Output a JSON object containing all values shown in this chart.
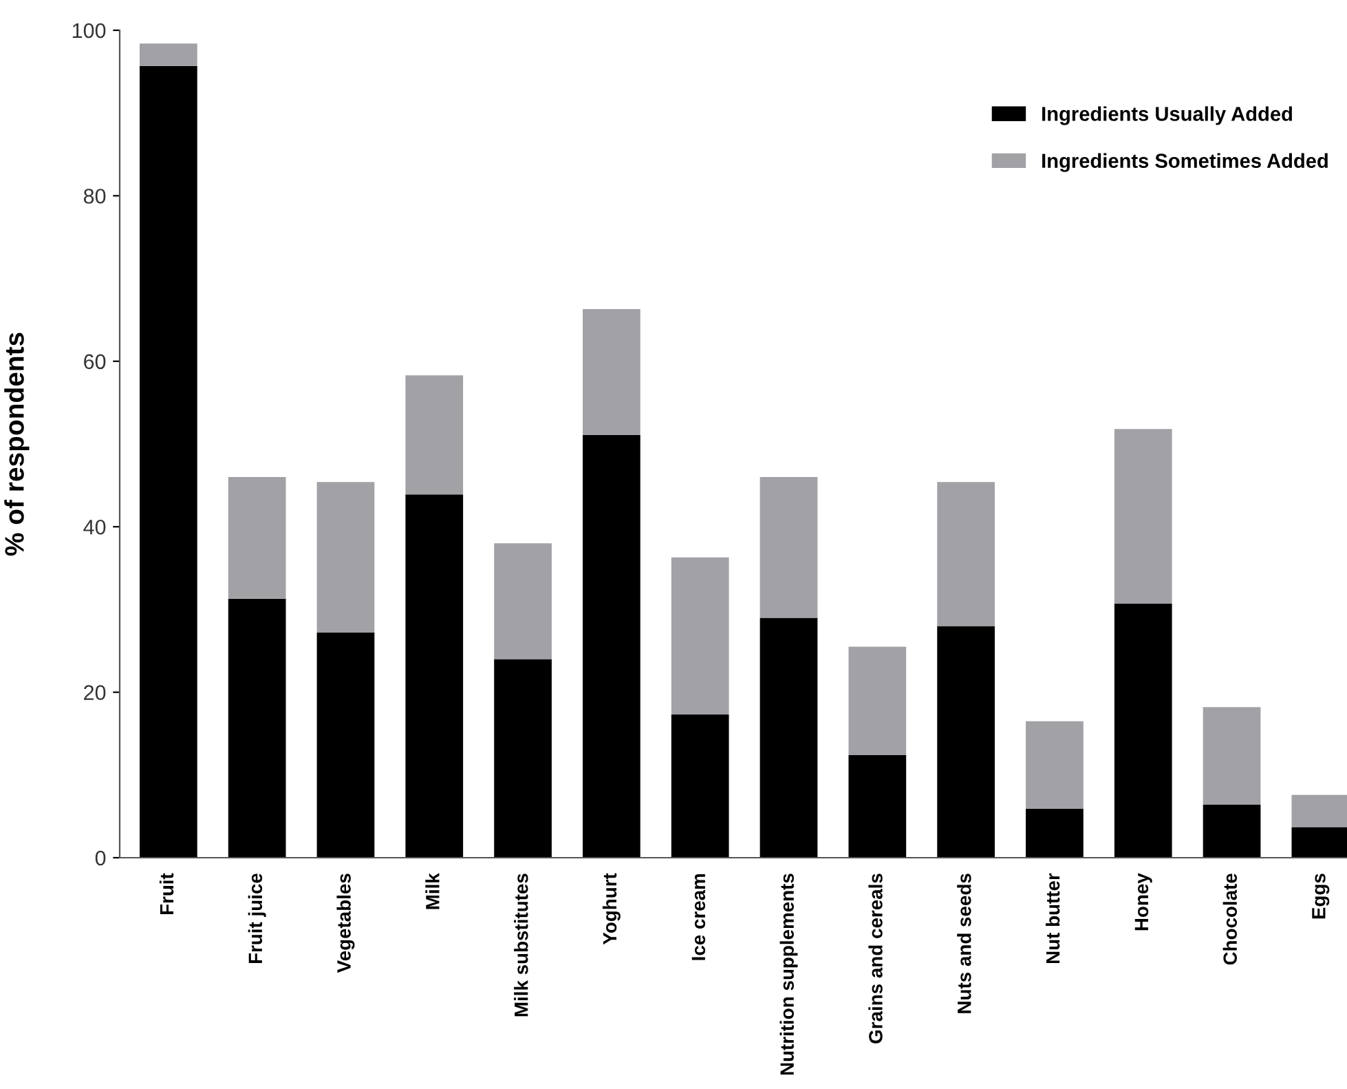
{
  "chart_data": {
    "type": "bar",
    "stacked": true,
    "ylabel": "% of respondents",
    "categories": [
      "Fruit",
      "Fruit juice",
      "Vegetables",
      "Milk",
      "Milk substitutes",
      "Yoghurt",
      "Ice cream",
      "Nutrition supplements",
      "Grains and cereals",
      "Nuts and seeds",
      "Nut butter",
      "Honey",
      "Chocolate",
      "Eggs"
    ],
    "series": [
      {
        "name": "Ingredients Usually Added",
        "color": "#000000",
        "values": [
          95.7,
          31.3,
          27.2,
          43.9,
          24.0,
          51.1,
          17.3,
          29.0,
          12.4,
          28.0,
          5.9,
          30.7,
          6.4,
          3.7
        ]
      },
      {
        "name": "Ingredients Sometimes Added",
        "color": "#a2a1a6",
        "values": [
          2.7,
          14.7,
          18.2,
          14.4,
          14.0,
          15.2,
          19.0,
          17.0,
          13.1,
          17.4,
          10.6,
          21.1,
          11.8,
          3.9
        ]
      }
    ],
    "ylim": [
      0,
      100
    ],
    "yticks": [
      0,
      20,
      40,
      60,
      80,
      100
    ],
    "grid": false,
    "legend": "top right"
  }
}
